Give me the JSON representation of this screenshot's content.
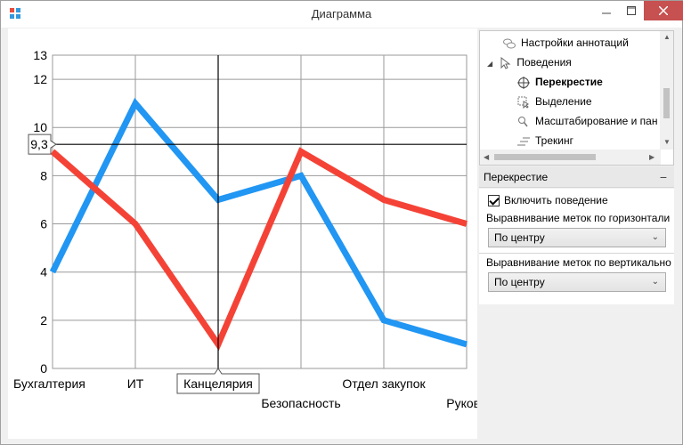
{
  "window": {
    "title": "Диаграмма"
  },
  "tree": {
    "items": [
      {
        "label": "Настройки аннотаций",
        "icon": "annotation-bubbles-icon"
      },
      {
        "label": "Поведения",
        "icon": "cursor-icon",
        "expanded": true
      },
      {
        "label": "Перекрестие",
        "icon": "crosshair-icon",
        "selected": true
      },
      {
        "label": "Выделение",
        "icon": "selection-icon"
      },
      {
        "label": "Масштабирование и пан",
        "icon": "zoom-icon"
      },
      {
        "label": "Трекинг",
        "icon": "tracking-icon"
      }
    ]
  },
  "properties": {
    "section_title": "Перекрестие",
    "enable_behavior_label": "Включить поведение",
    "enable_behavior_checked": true,
    "horizontal_align_label": "Выравнивание меток по горизонтали",
    "horizontal_align_value": "По центру",
    "vertical_align_label": "Выравнивание меток по вертикально",
    "vertical_align_value": "По центру"
  },
  "chart_data": {
    "type": "line",
    "categories": [
      "Бухгалтерия",
      "ИТ",
      "Канцелярия",
      "Безопасность",
      "Отдел закупок",
      "Руково"
    ],
    "series": [
      {
        "values": [
          4,
          11,
          7,
          8,
          2,
          1
        ],
        "color": "#2196F3"
      },
      {
        "values": [
          9,
          6,
          1,
          9,
          7,
          6
        ],
        "color": "#F44336"
      }
    ],
    "y_ticks": [
      0,
      2,
      4,
      6,
      8,
      10,
      12,
      13
    ],
    "ylim": [
      0,
      13
    ],
    "grid": true,
    "crosshair": {
      "x_label": "Канцелярия",
      "y_label": "9,3",
      "y_value": 9.3
    }
  }
}
